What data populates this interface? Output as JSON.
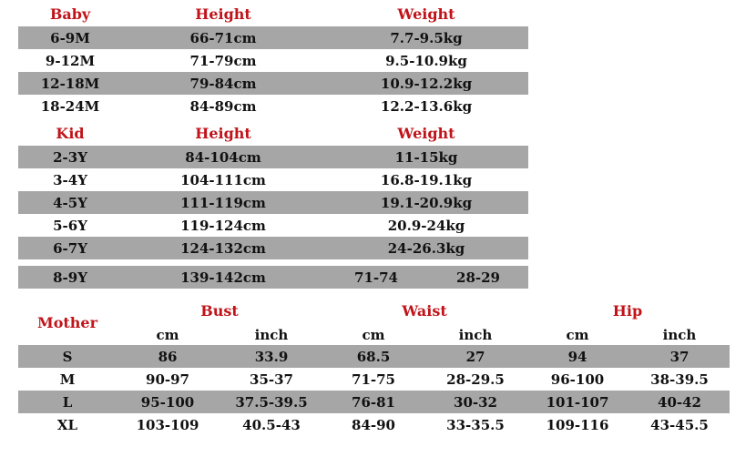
{
  "colors": {
    "header_red": "#c0141a",
    "band_gray": "#a6a6a6"
  },
  "baby": {
    "headers": {
      "size": "Baby",
      "height": "Height",
      "weight": "Weight"
    },
    "rows": [
      {
        "size": "6-9M",
        "height": "66-71cm",
        "weight": "7.7-9.5kg"
      },
      {
        "size": "9-12M",
        "height": "71-79cm",
        "weight": "9.5-10.9kg"
      },
      {
        "size": "12-18M",
        "height": "79-84cm",
        "weight": "10.9-12.2kg"
      },
      {
        "size": "18-24M",
        "height": "84-89cm",
        "weight": "12.2-13.6kg"
      }
    ]
  },
  "kid": {
    "headers": {
      "size": "Kid",
      "height": "Height",
      "weight": "Weight"
    },
    "rows": [
      {
        "size": "2-3Y",
        "height": "84-104cm",
        "weight": "11-15kg"
      },
      {
        "size": "3-4Y",
        "height": "104-111cm",
        "weight": "16.8-19.1kg"
      },
      {
        "size": "4-5Y",
        "height": "111-119cm",
        "weight": "19.1-20.9kg"
      },
      {
        "size": "5-6Y",
        "height": "119-124cm",
        "weight": "20.9-24kg"
      },
      {
        "size": "6-7Y",
        "height": "124-132cm",
        "weight": "24-26.3kg"
      }
    ],
    "last_row": {
      "size": "8-9Y",
      "height": "139-142cm",
      "weight_a": "71-74",
      "weight_b": "28-29"
    }
  },
  "mother": {
    "headers": {
      "size": "Mother",
      "bust": "Bust",
      "waist": "Waist",
      "hip": "Hip"
    },
    "units": {
      "cm": "cm",
      "inch": "inch"
    },
    "rows": [
      {
        "size": "S",
        "bust_cm": "86",
        "bust_inch": "33.9",
        "waist_cm": "68.5",
        "waist_inch": "27",
        "hip_cm": "94",
        "hip_inch": "37"
      },
      {
        "size": "M",
        "bust_cm": "90-97",
        "bust_inch": "35-37",
        "waist_cm": "71-75",
        "waist_inch": "28-29.5",
        "hip_cm": "96-100",
        "hip_inch": "38-39.5"
      },
      {
        "size": "L",
        "bust_cm": "95-100",
        "bust_inch": "37.5-39.5",
        "waist_cm": "76-81",
        "waist_inch": "30-32",
        "hip_cm": "101-107",
        "hip_inch": "40-42"
      },
      {
        "size": "XL",
        "bust_cm": "103-109",
        "bust_inch": "40.5-43",
        "waist_cm": "84-90",
        "waist_inch": "33-35.5",
        "hip_cm": "109-116",
        "hip_inch": "43-45.5"
      }
    ]
  }
}
